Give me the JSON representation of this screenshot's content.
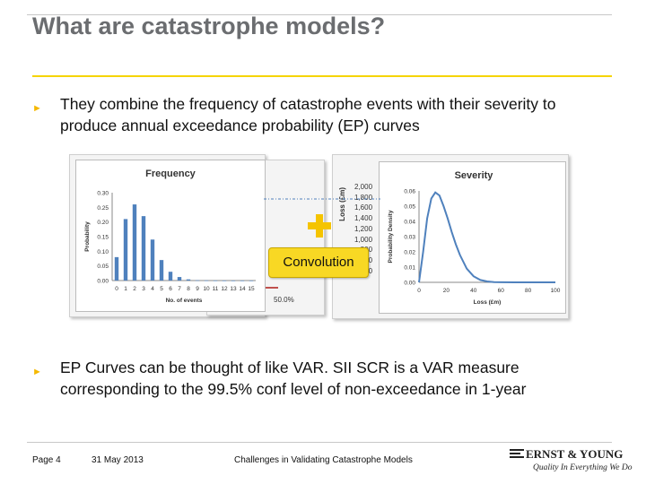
{
  "slide": {
    "title": "What are catastrophe models?",
    "bullets": [
      "They combine the frequency of catastrophe events with their severity to produce annual exceedance probability (EP) curves",
      "EP Curves can be thought of like VAR. SII SCR is a VAR measure corresponding to the 99.5% conf level of non-exceedance in 1-year"
    ],
    "bullet_icon": "triangle-right-icon",
    "convolution_label": "Convolution",
    "plus_icon": "plus-icon",
    "partial_label": "50.0%",
    "partial_axis_label": "Loss (£m)",
    "partial_axis_ticks": [
      "2,000",
      "1,800",
      "1,600",
      "1,400",
      "1,200",
      "1,000",
      "800",
      "200",
      "0"
    ]
  },
  "footer": {
    "page": "Page 4",
    "date": "31 May 2013",
    "center": "Challenges in Validating Catastrophe Models",
    "logo_name": "ERNST & YOUNG",
    "logo_tagline": "Quality In Everything We Do",
    "logo_icon": "ernst-young-logo-icon"
  },
  "colors": {
    "accent": "#f5d400",
    "bar": "#4f81bd",
    "title": "#6b6d70"
  },
  "chart_data": [
    {
      "type": "bar",
      "title": "Frequency",
      "xlabel": "No. of events",
      "ylabel": "Probability",
      "categories": [
        "0",
        "1",
        "2",
        "3",
        "4",
        "5",
        "6",
        "7",
        "8",
        "9",
        "10",
        "11",
        "12",
        "13",
        "14",
        "15"
      ],
      "values": [
        0.08,
        0.21,
        0.26,
        0.22,
        0.14,
        0.07,
        0.03,
        0.012,
        0.004,
        0.001,
        0.0005,
        0.0002,
        0.0001,
        0.0,
        0.0,
        0.0
      ],
      "ylim": [
        0,
        0.3
      ],
      "yticks": [
        "0.00",
        "0.05",
        "0.10",
        "0.15",
        "0.20",
        "0.25",
        "0.30"
      ],
      "grid": false
    },
    {
      "type": "line",
      "title": "Severity",
      "xlabel": "Loss (£m)",
      "ylabel": "Probability Density",
      "x": [
        0,
        3,
        6,
        9,
        12,
        15,
        18,
        21,
        24,
        27,
        30,
        35,
        40,
        45,
        50,
        55,
        60,
        70,
        80,
        90,
        100
      ],
      "values": [
        0.0,
        0.02,
        0.042,
        0.055,
        0.059,
        0.057,
        0.05,
        0.042,
        0.033,
        0.025,
        0.018,
        0.009,
        0.004,
        0.0015,
        0.0006,
        0.0002,
        5e-05,
        0.0,
        0.0,
        0.0,
        0.0
      ],
      "xlim": [
        0,
        100
      ],
      "ylim": [
        0,
        0.06
      ],
      "xticks": [
        "0",
        "20",
        "40",
        "60",
        "80",
        "100"
      ],
      "yticks": [
        "0.00",
        "0.01",
        "0.02",
        "0.03",
        "0.04",
        "0.05",
        "0.06"
      ],
      "grid": false
    }
  ]
}
